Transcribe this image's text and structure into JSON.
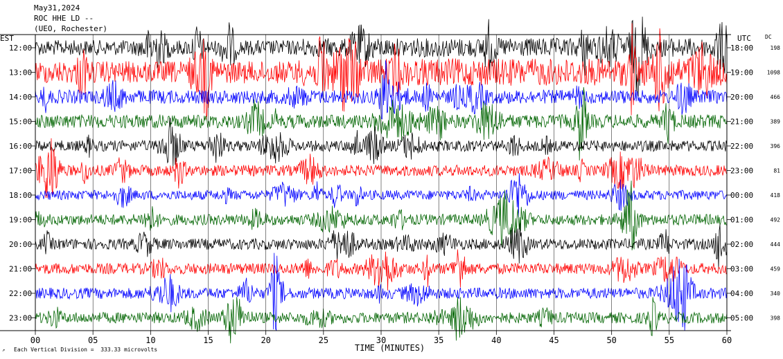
{
  "header": {
    "date": "May31,2024",
    "station": "ROC HHE LD --",
    "location": "(UEO, Rochester)"
  },
  "labels": {
    "left_tz": "EST",
    "right_tz": "UTC",
    "dc": "DC"
  },
  "footer": {
    "scale_note": "Each Vertical Division =  333.33 microvolts"
  },
  "chart_data": {
    "type": "line",
    "title": "",
    "xlabel": "TIME (MINUTES)",
    "ylabel": "",
    "xlim": [
      0,
      60
    ],
    "x_ticks": [
      "00",
      "05",
      "10",
      "15",
      "20",
      "25",
      "30",
      "35",
      "40",
      "45",
      "50",
      "55",
      "60"
    ],
    "trace_colors": [
      "#000000",
      "#ff0000",
      "#0000ff",
      "#006400"
    ],
    "rows": [
      {
        "est": "12:00",
        "utc": "18:00",
        "dc": "198",
        "color": "#000000"
      },
      {
        "est": "13:00",
        "utc": "19:00",
        "dc": "1098",
        "color": "#ff0000"
      },
      {
        "est": "14:00",
        "utc": "20:00",
        "dc": "466",
        "color": "#0000ff"
      },
      {
        "est": "15:00",
        "utc": "21:00",
        "dc": "389",
        "color": "#006400"
      },
      {
        "est": "16:00",
        "utc": "22:00",
        "dc": "396",
        "color": "#000000"
      },
      {
        "est": "17:00",
        "utc": "23:00",
        "dc": "81",
        "color": "#ff0000"
      },
      {
        "est": "18:00",
        "utc": "00:00",
        "dc": "418",
        "color": "#0000ff"
      },
      {
        "est": "19:00",
        "utc": "01:00",
        "dc": "492",
        "color": "#006400"
      },
      {
        "est": "20:00",
        "utc": "02:00",
        "dc": "444",
        "color": "#000000"
      },
      {
        "est": "21:00",
        "utc": "03:00",
        "dc": "459",
        "color": "#ff0000"
      },
      {
        "est": "22:00",
        "utc": "04:00",
        "dc": "340",
        "color": "#0000ff"
      },
      {
        "est": "23:00",
        "utc": "05:00",
        "dc": "398",
        "color": "#006400"
      }
    ],
    "grid": true
  }
}
